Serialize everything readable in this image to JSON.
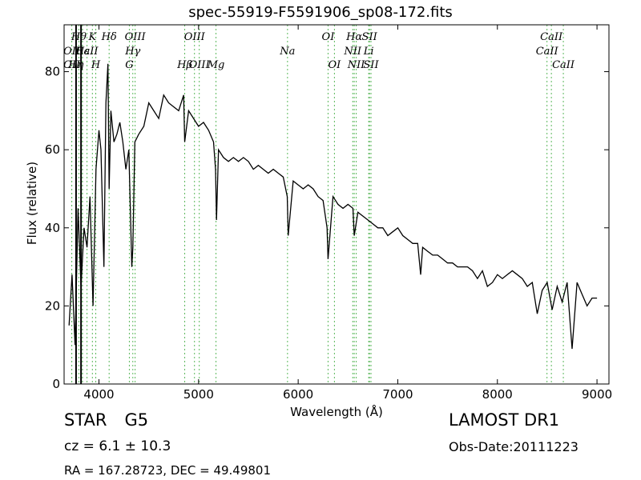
{
  "chart_data": {
    "type": "line",
    "title": "spec-55919-F5591906_sp08-172.fits",
    "xlabel": "Wavelength (Å)",
    "ylabel": "Flux (relative)",
    "xlim": [
      3650,
      9120
    ],
    "ylim": [
      0,
      92
    ],
    "x_ticks": [
      4000,
      5000,
      6000,
      7000,
      8000,
      9000
    ],
    "y_ticks": [
      0,
      20,
      40,
      60,
      80
    ],
    "grid": false,
    "x": [
      3700,
      3730,
      3760,
      3790,
      3820,
      3850,
      3880,
      3910,
      3940,
      3970,
      4000,
      4020,
      4050,
      4070,
      4090,
      4102,
      4120,
      4150,
      4180,
      4210,
      4240,
      4270,
      4300,
      4330,
      4340,
      4360,
      4400,
      4450,
      4500,
      4550,
      4600,
      4650,
      4700,
      4750,
      4800,
      4850,
      4861,
      4900,
      4950,
      5000,
      5050,
      5100,
      5150,
      5170,
      5180,
      5200,
      5250,
      5300,
      5350,
      5400,
      5450,
      5500,
      5550,
      5600,
      5650,
      5700,
      5750,
      5800,
      5850,
      5890,
      5900,
      5950,
      6000,
      6050,
      6100,
      6150,
      6200,
      6250,
      6290,
      6300,
      6350,
      6400,
      6450,
      6500,
      6550,
      6563,
      6600,
      6650,
      6700,
      6750,
      6800,
      6850,
      6900,
      6950,
      7000,
      7050,
      7100,
      7150,
      7200,
      7230,
      7250,
      7300,
      7350,
      7400,
      7450,
      7500,
      7550,
      7600,
      7650,
      7700,
      7750,
      7800,
      7850,
      7900,
      7950,
      8000,
      8050,
      8100,
      8150,
      8200,
      8250,
      8300,
      8350,
      8400,
      8450,
      8500,
      8550,
      8600,
      8650,
      8700,
      8750,
      8800,
      8850,
      8900,
      8950,
      9000
    ],
    "y": [
      15,
      28,
      10,
      45,
      25,
      40,
      35,
      48,
      20,
      55,
      65,
      60,
      30,
      72,
      82,
      50,
      70,
      62,
      64,
      67,
      62,
      55,
      60,
      30,
      35,
      62,
      64,
      66,
      72,
      70,
      68,
      74,
      72,
      71,
      70,
      74,
      62,
      70,
      68,
      66,
      67,
      65,
      62,
      55,
      42,
      60,
      58,
      57,
      58,
      57,
      58,
      57,
      55,
      56,
      55,
      54,
      55,
      54,
      53,
      48,
      38,
      52,
      51,
      50,
      51,
      50,
      48,
      47,
      40,
      32,
      48,
      46,
      45,
      46,
      45,
      38,
      44,
      43,
      42,
      41,
      40,
      40,
      38,
      39,
      40,
      38,
      37,
      36,
      36,
      28,
      35,
      34,
      33,
      33,
      32,
      31,
      31,
      30,
      30,
      30,
      29,
      27,
      29,
      25,
      26,
      28,
      27,
      28,
      29,
      28,
      27,
      25,
      26,
      18,
      24,
      26,
      19,
      25,
      21,
      26,
      9,
      26,
      23,
      20,
      22,
      22
    ],
    "reference_lines": [
      {
        "label": "Hθ",
        "x": 3798,
        "tier": 1
      },
      {
        "label": "K",
        "x": 3934,
        "tier": 1
      },
      {
        "label": "Hδ",
        "x": 4102,
        "tier": 1
      },
      {
        "label": "OIII",
        "x": 4363,
        "tier": 1
      },
      {
        "label": "OIII",
        "x": 4959,
        "tier": 1
      },
      {
        "label": "OI",
        "x": 6300,
        "tier": 1
      },
      {
        "label": "Hα",
        "x": 6563,
        "tier": 1
      },
      {
        "label": "SII",
        "x": 6716,
        "tier": 1
      },
      {
        "label": "CaII",
        "x": 8542,
        "tier": 1
      },
      {
        "label": "OII",
        "x": 3727,
        "tier": 2
      },
      {
        "label": "Hε",
        "x": 3835,
        "tier": 2
      },
      {
        "label": "CaII",
        "x": 3880,
        "tier": 2
      },
      {
        "label": "Hγ",
        "x": 4340,
        "tier": 2
      },
      {
        "label": "NII",
        "x": 6548,
        "tier": 2
      },
      {
        "label": "Li",
        "x": 6708,
        "tier": 2
      },
      {
        "label": "CaII",
        "x": 8498,
        "tier": 2
      },
      {
        "label": "OII",
        "x": 3727,
        "tier": 3
      },
      {
        "label": "Hη",
        "x": 3770,
        "tier": 3
      },
      {
        "label": "H",
        "x": 3968,
        "tier": 3
      },
      {
        "label": "G",
        "x": 4305,
        "tier": 3
      },
      {
        "label": "Hβ",
        "x": 4861,
        "tier": 3
      },
      {
        "label": "OIII",
        "x": 5007,
        "tier": 3
      },
      {
        "label": "Mg",
        "x": 5175,
        "tier": 3
      },
      {
        "label": "Na",
        "x": 5893,
        "tier": 2
      },
      {
        "label": "OI",
        "x": 6364,
        "tier": 3
      },
      {
        "label": "NII",
        "x": 6583,
        "tier": 3
      },
      {
        "label": "SII",
        "x": 6731,
        "tier": 3
      },
      {
        "label": "CaII",
        "x": 8662,
        "tier": 3
      }
    ],
    "vertical_markers": [
      3770,
      3820
    ]
  },
  "info": {
    "class": "STAR",
    "subclass": "G5",
    "cz": "cz = 6.1 ± 10.3",
    "radec": "RA = 167.28723, DEC = 49.49801",
    "survey": "LAMOST DR1",
    "obs_date": "Obs-Date:20111223"
  }
}
